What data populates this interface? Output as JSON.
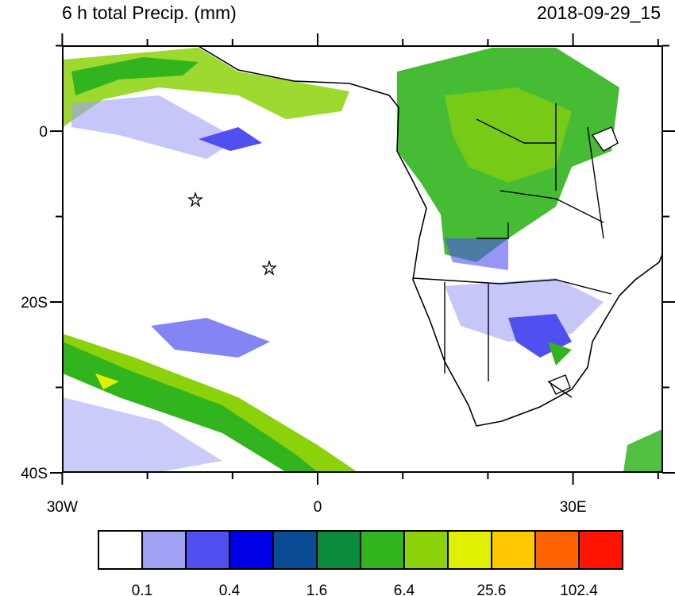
{
  "header": {
    "title": "6 h total Precip. (mm)",
    "valid_time": "2018-09-29_15"
  },
  "map": {
    "lat_labels": [
      "0",
      "20S",
      "40S"
    ],
    "lon_labels": [
      "30W",
      "0",
      "30E"
    ]
  },
  "colorbar": {
    "colors": [
      "#ffffff",
      "#a0a0f5",
      "#5050f0",
      "#0000e6",
      "#0a4b96",
      "#0a8c3c",
      "#32b41e",
      "#8cd20a",
      "#e1f000",
      "#ffc800",
      "#ff6400",
      "#ff1400"
    ],
    "labels": [
      "0.1",
      "0.4",
      "1.6",
      "6.4",
      "25.6",
      "102.4"
    ]
  }
}
